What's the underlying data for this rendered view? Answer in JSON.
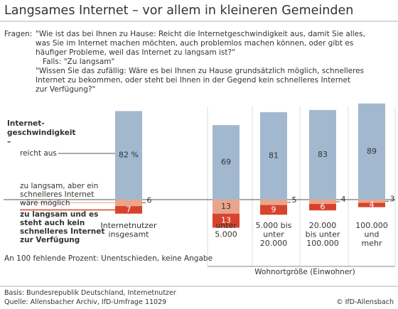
{
  "chart_data": {
    "type": "bar",
    "title": "Langsames Internet – vor allem in kleineren Gemeinden",
    "question_label": "Fragen:",
    "question": [
      "\"Wie ist das bei Ihnen zu Hause: Reicht die Internetgeschwindigkeit aus, damit Sie alles,",
      "was Sie im Internet machen möchten, auch problemlos machen können, oder gibt es",
      "häufiger Probleme, weil das Internet zu langsam ist?\"",
      "Falls: \"Zu langsam\"",
      "\"Wissen Sie das zufällig: Wäre es bei Ihnen zu Hause grundsätzlich möglich, schnelleres",
      "Internet zu bekommen, oder steht bei Ihnen in der Gegend kein schnelleres Internet",
      "zur Verfügung?\""
    ],
    "legend_title": "Internet-geschwindigkeit –",
    "categories": [
      [
        "Internetnutzer",
        "insgesamt"
      ],
      [
        "unter",
        "5.000"
      ],
      [
        "5.000 bis",
        "unter",
        "20.000"
      ],
      [
        "20.000",
        "bis unter",
        "100.000"
      ],
      [
        "100.000",
        "und",
        "mehr"
      ]
    ],
    "x_label": "Wohnortgröße (Einwohner)",
    "series": [
      {
        "name": "reicht aus",
        "color": "#a2b8cf",
        "values": [
          82,
          69,
          81,
          83,
          89
        ],
        "value_labels": [
          "82 %",
          "69",
          "81",
          "83",
          "89"
        ]
      },
      {
        "name": "zu langsam, aber ein schnelleres Internet wäre möglich",
        "color": "#e9a58b",
        "values": [
          6,
          13,
          5,
          4,
          3
        ]
      },
      {
        "name": "zu langsam und es steht auch kein schnelleres Internet zur Verfügung",
        "color": "#d8432d",
        "values": [
          7,
          13,
          9,
          6,
          4
        ]
      }
    ],
    "note": "An 100 fehlende Prozent: Unentschieden, keine Angabe",
    "basis": "Basis: Bundesrepublik Deutschland, Internetnutzer",
    "source": "Quelle: Allensbacher Archiv, IfD-Umfrage 11029",
    "copyright": "© IfD-Allensbach"
  }
}
